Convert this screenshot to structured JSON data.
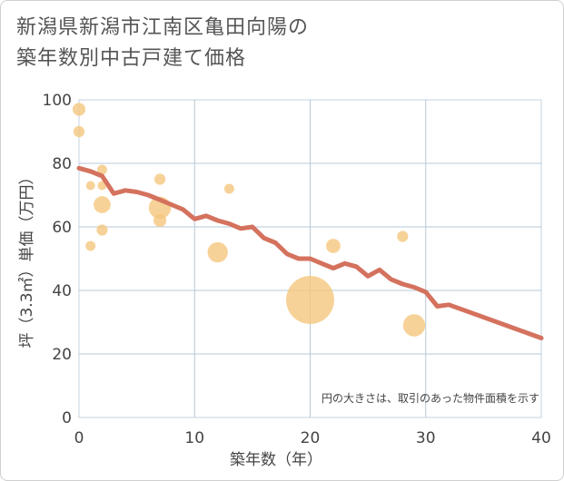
{
  "chart_data": {
    "type": "scatter+line",
    "title_lines": [
      "新潟県新潟市江南区亀田向陽の",
      "築年数別中古戸建て価格"
    ],
    "xlabel": "築年数（年）",
    "ylabel": "坪（3.3㎡）単価（万円）",
    "xlim": [
      0,
      40
    ],
    "ylim": [
      0,
      100
    ],
    "xticks": [
      0,
      10,
      20,
      30,
      40
    ],
    "yticks": [
      0,
      20,
      40,
      60,
      80,
      100
    ],
    "grid": true,
    "note": "円の大きさは、取引のあった物件面積を示す",
    "colors": {
      "bubble": "#f5c77e",
      "line": "#d4725e",
      "grid": "#b7c9d8",
      "axis_text": "#444444"
    },
    "bubbles": [
      {
        "x": 0,
        "y": 97,
        "size": 2
      },
      {
        "x": 0,
        "y": 90,
        "size": 1.5
      },
      {
        "x": 1,
        "y": 73,
        "size": 1
      },
      {
        "x": 1,
        "y": 54,
        "size": 1.2
      },
      {
        "x": 2,
        "y": 78,
        "size": 1.2
      },
      {
        "x": 2,
        "y": 73,
        "size": 1
      },
      {
        "x": 2,
        "y": 67,
        "size": 3.5
      },
      {
        "x": 2,
        "y": 59,
        "size": 1.5
      },
      {
        "x": 7,
        "y": 75,
        "size": 1.5
      },
      {
        "x": 7,
        "y": 66,
        "size": 6
      },
      {
        "x": 7,
        "y": 62,
        "size": 2
      },
      {
        "x": 12,
        "y": 52,
        "size": 5
      },
      {
        "x": 13,
        "y": 72,
        "size": 1.2
      },
      {
        "x": 20,
        "y": 37,
        "size": 28
      },
      {
        "x": 22,
        "y": 54,
        "size": 2.5
      },
      {
        "x": 28,
        "y": 57,
        "size": 1.5
      },
      {
        "x": 29,
        "y": 29,
        "size": 6
      }
    ],
    "trend": {
      "x": [
        0,
        1,
        2,
        3,
        4,
        5,
        6,
        7,
        8,
        9,
        10,
        11,
        12,
        13,
        14,
        15,
        16,
        17,
        18,
        19,
        20,
        21,
        22,
        23,
        24,
        25,
        26,
        27,
        28,
        29,
        30,
        31,
        32,
        40
      ],
      "y": [
        78.5,
        77.5,
        76,
        70.5,
        71.5,
        71,
        70,
        68.5,
        67,
        65.5,
        62.5,
        63.5,
        62,
        61,
        59.5,
        60,
        56.5,
        55,
        51.5,
        50,
        50,
        48.5,
        47,
        48.5,
        47.5,
        44.5,
        46.5,
        43.5,
        42,
        41,
        39.5,
        35,
        35.5,
        25
      ]
    }
  }
}
